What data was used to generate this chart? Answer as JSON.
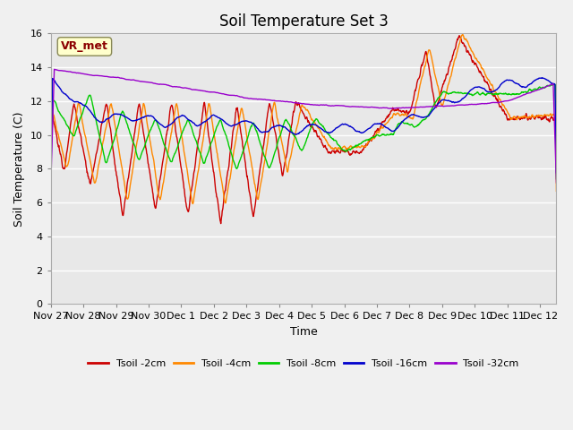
{
  "title": "Soil Temperature Set 3",
  "xlabel": "Time",
  "ylabel": "Soil Temperature (C)",
  "ylim": [
    0,
    16
  ],
  "yticks": [
    0,
    2,
    4,
    6,
    8,
    10,
    12,
    14,
    16
  ],
  "xtick_labels": [
    "Nov 27",
    "Nov 28",
    "Nov 29",
    "Nov 30",
    "Dec 1",
    "Dec 2",
    "Dec 3",
    "Dec 4",
    "Dec 5",
    "Dec 6",
    "Dec 7",
    "Dec 8",
    "Dec 9",
    "Dec 10",
    "Dec 11",
    "Dec 12"
  ],
  "series_colors": [
    "#cc0000",
    "#ff8800",
    "#00cc00",
    "#0000cc",
    "#9900cc"
  ],
  "series_labels": [
    "Tsoil -2cm",
    "Tsoil -4cm",
    "Tsoil -8cm",
    "Tsoil -16cm",
    "Tsoil -32cm"
  ],
  "annotation_text": "VR_met",
  "annotation_color": "#8b0000",
  "bg_color": "#e8e8e8",
  "grid_color": "#ffffff",
  "n_points": 1440,
  "figsize": [
    6.4,
    4.8
  ],
  "dpi": 100
}
